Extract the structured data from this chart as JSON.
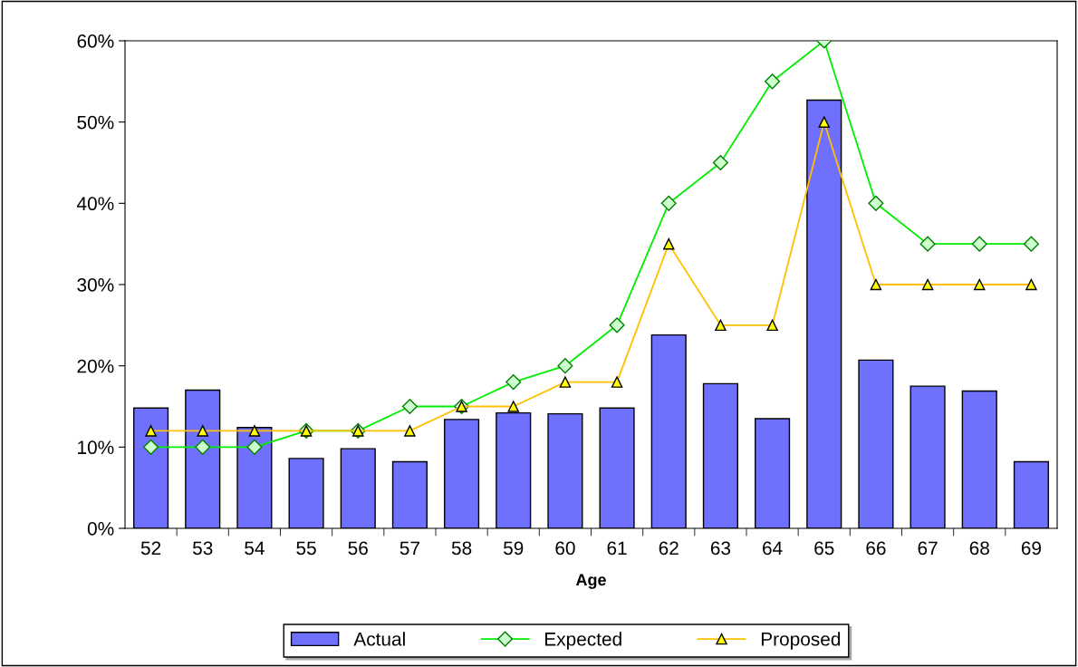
{
  "chart_data": {
    "type": "bar",
    "xlabel": "Age",
    "categories": [
      "52",
      "53",
      "54",
      "55",
      "56",
      "57",
      "58",
      "59",
      "60",
      "61",
      "62",
      "63",
      "64",
      "65",
      "66",
      "67",
      "68",
      "69"
    ],
    "series": [
      {
        "name": "Actual",
        "color": "#7070ff",
        "values": [
          14.8,
          17.0,
          12.4,
          8.6,
          9.8,
          8.2,
          13.4,
          14.2,
          14.1,
          14.8,
          23.8,
          17.8,
          13.5,
          52.7,
          20.7,
          17.5,
          16.9,
          8.2
        ]
      },
      {
        "name": "Expected",
        "type": "line",
        "color": "#00ee00",
        "marker": "diamond",
        "values": [
          10,
          10,
          10,
          12,
          12,
          15,
          15,
          18,
          20,
          25,
          40,
          45,
          55,
          60,
          40,
          35,
          35,
          35
        ]
      },
      {
        "name": "Proposed",
        "type": "line",
        "color": "#ffc000",
        "marker": "triangle",
        "values": [
          12,
          12,
          12,
          12,
          12,
          12,
          15,
          15,
          18,
          18,
          35,
          25,
          25,
          50,
          30,
          30,
          30,
          30
        ]
      }
    ],
    "ylim": [
      0,
      60
    ],
    "yticks": [
      {
        "value": 0,
        "label": "0%"
      },
      {
        "value": 10,
        "label": "10%"
      },
      {
        "value": 20,
        "label": "20%"
      },
      {
        "value": 30,
        "label": "30%"
      },
      {
        "value": 40,
        "label": "40%"
      },
      {
        "value": 50,
        "label": "50%"
      },
      {
        "value": 60,
        "label": "60%"
      }
    ],
    "grid": false,
    "legend": "bottom"
  }
}
